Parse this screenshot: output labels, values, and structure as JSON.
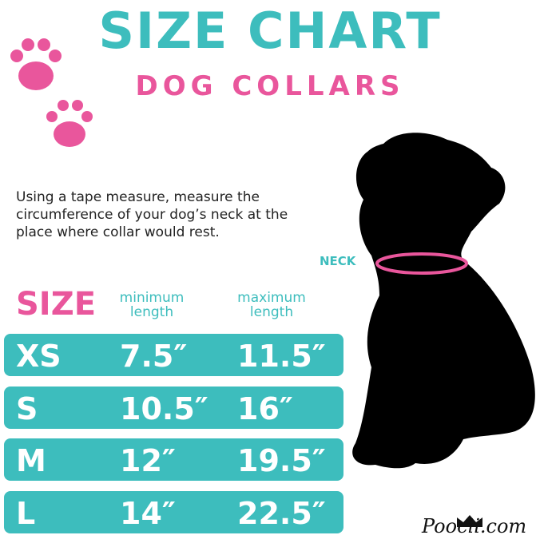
{
  "title": "SIZE CHART",
  "subtitle": "DOG COLLARS",
  "instructions": "Using a tape measure, measure the circumference of your dog’s neck at the place where collar would rest.",
  "neck_label": "NECK",
  "table": {
    "size_header": "SIZE",
    "min_header": [
      "minimum",
      "length"
    ],
    "max_header": [
      "maximum",
      "length"
    ],
    "rows": [
      {
        "size": "XS",
        "min": "7.5″",
        "max": "11.5″"
      },
      {
        "size": "S",
        "min": "10.5″",
        "max": "16″"
      },
      {
        "size": "M",
        "min": "12″",
        "max": "19.5″"
      },
      {
        "size": "L",
        "min": "14″",
        "max": "22.5″"
      }
    ]
  },
  "logo": "Poocii.com",
  "colors": {
    "teal": "#3dbdbd",
    "pink": "#e9569c",
    "black": "#000000"
  },
  "icons": [
    "paw-print-icon",
    "paw-print-icon",
    "dog-silhouette",
    "crown-icon"
  ]
}
